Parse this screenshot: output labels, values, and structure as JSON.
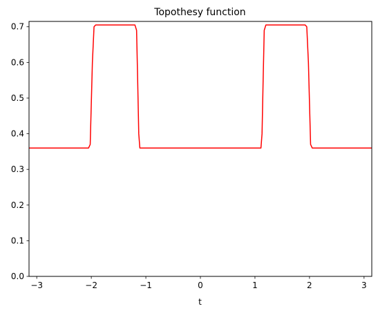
{
  "chart_data": {
    "type": "line",
    "title": "Topothesy function",
    "xlabel": "t",
    "ylabel": "",
    "xlim": [
      -3.14159,
      3.14159
    ],
    "ylim": [
      0.0,
      0.715
    ],
    "xticks": [
      -3,
      -2,
      -1,
      0,
      1,
      2,
      3
    ],
    "xtick_labels": [
      "−3",
      "−2",
      "−1",
      "0",
      "1",
      "2",
      "3"
    ],
    "yticks": [
      0.0,
      0.1,
      0.2,
      0.3,
      0.4,
      0.5,
      0.6,
      0.7
    ],
    "ytick_labels": [
      "0.0",
      "0.1",
      "0.2",
      "0.3",
      "0.4",
      "0.5",
      "0.6",
      "0.7"
    ],
    "grid": false,
    "series": [
      {
        "color": "#ff0000",
        "x": [
          -3.14159,
          -2.05,
          -2.02,
          -1.98,
          -1.95,
          -1.92,
          -1.2,
          -1.17,
          -1.15,
          -1.13,
          -1.11,
          1.11,
          1.13,
          1.15,
          1.17,
          1.2,
          1.92,
          1.95,
          1.98,
          2.02,
          2.05,
          3.14159
        ],
        "y": [
          0.36,
          0.36,
          0.37,
          0.6,
          0.7,
          0.705,
          0.705,
          0.69,
          0.55,
          0.4,
          0.36,
          0.36,
          0.4,
          0.55,
          0.69,
          0.705,
          0.705,
          0.7,
          0.6,
          0.37,
          0.36,
          0.36
        ]
      }
    ]
  }
}
